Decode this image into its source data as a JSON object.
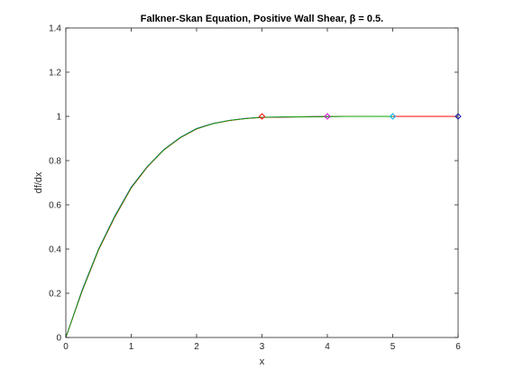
{
  "chart_data": {
    "type": "line",
    "title": "Falkner-Skan Equation, Positive Wall Shear, β = 0.5.",
    "xlabel": "x",
    "ylabel": "df/dx",
    "xlim": [
      0,
      6
    ],
    "ylim": [
      0,
      1.4
    ],
    "xticks": [
      "0",
      "1",
      "2",
      "3",
      "4",
      "5",
      "6"
    ],
    "yticks": [
      "0",
      "0.2",
      "0.4",
      "0.6",
      "0.8",
      "1",
      "1.2",
      "1.4"
    ],
    "grid": false,
    "legend": "none",
    "series": [
      {
        "color": "#0000ff",
        "x": [
          0,
          0.25,
          0.5,
          0.75,
          1.0,
          1.25,
          1.5,
          1.75,
          2.0,
          2.25,
          2.5,
          2.75,
          3.0,
          4.0,
          5.0,
          6.0
        ],
        "y": [
          0,
          0.215,
          0.4,
          0.55,
          0.68,
          0.775,
          0.85,
          0.905,
          0.945,
          0.968,
          0.982,
          0.991,
          0.996,
          0.9995,
          1.0,
          1.0
        ]
      },
      {
        "color": "#ff0000",
        "x": [
          0,
          0.25,
          0.5,
          0.75,
          1.0,
          1.25,
          1.5,
          1.75,
          2.0,
          2.25,
          2.5,
          2.75,
          3.0,
          4.0,
          5.0,
          6.0
        ],
        "y": [
          0,
          0.21,
          0.395,
          0.545,
          0.676,
          0.772,
          0.848,
          0.903,
          0.943,
          0.967,
          0.981,
          0.99,
          0.995,
          0.9995,
          1.0,
          1.0
        ]
      },
      {
        "color": "#00aa00",
        "x": [
          0,
          0.25,
          0.5,
          0.75,
          1.0,
          1.25,
          1.5,
          1.75,
          2.0,
          2.25,
          2.5,
          2.75,
          3.0,
          4.0,
          5.0
        ],
        "y": [
          0,
          0.212,
          0.398,
          0.548,
          0.678,
          0.774,
          0.849,
          0.904,
          0.944,
          0.967,
          0.982,
          0.99,
          0.996,
          0.9995,
          1.0
        ]
      }
    ],
    "markers": [
      {
        "x": 3,
        "y": 1.0,
        "color": "#ff0000"
      },
      {
        "x": 4,
        "y": 1.0,
        "color": "#cc00cc"
      },
      {
        "x": 5,
        "y": 1.0,
        "color": "#00aaff"
      },
      {
        "x": 6,
        "y": 1.0,
        "color": "#0000cc"
      }
    ]
  }
}
